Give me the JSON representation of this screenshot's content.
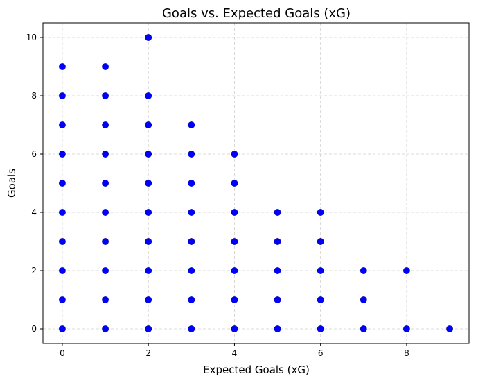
{
  "chart_data": {
    "type": "scatter",
    "title": "Goals vs. Expected Goals (xG)",
    "xlabel": "Expected Goals (xG)",
    "ylabel": "Goals",
    "xlim": [
      -0.45,
      9.45
    ],
    "ylim": [
      -0.5,
      10.5
    ],
    "xticks": [
      0,
      2,
      4,
      6,
      8
    ],
    "yticks": [
      0,
      2,
      4,
      6,
      8,
      10
    ],
    "grid": true,
    "marker_color": "#0000ff",
    "points": [
      [
        0,
        0
      ],
      [
        0,
        1
      ],
      [
        0,
        2
      ],
      [
        0,
        3
      ],
      [
        0,
        4
      ],
      [
        0,
        5
      ],
      [
        0,
        6
      ],
      [
        0,
        7
      ],
      [
        0,
        8
      ],
      [
        0,
        9
      ],
      [
        1,
        0
      ],
      [
        1,
        1
      ],
      [
        1,
        2
      ],
      [
        1,
        3
      ],
      [
        1,
        4
      ],
      [
        1,
        5
      ],
      [
        1,
        6
      ],
      [
        1,
        7
      ],
      [
        1,
        8
      ],
      [
        1,
        9
      ],
      [
        2,
        0
      ],
      [
        2,
        1
      ],
      [
        2,
        2
      ],
      [
        2,
        3
      ],
      [
        2,
        4
      ],
      [
        2,
        5
      ],
      [
        2,
        6
      ],
      [
        2,
        7
      ],
      [
        2,
        8
      ],
      [
        2,
        10
      ],
      [
        3,
        0
      ],
      [
        3,
        1
      ],
      [
        3,
        2
      ],
      [
        3,
        3
      ],
      [
        3,
        4
      ],
      [
        3,
        5
      ],
      [
        3,
        6
      ],
      [
        3,
        7
      ],
      [
        4,
        0
      ],
      [
        4,
        1
      ],
      [
        4,
        2
      ],
      [
        4,
        3
      ],
      [
        4,
        4
      ],
      [
        4,
        5
      ],
      [
        4,
        6
      ],
      [
        5,
        0
      ],
      [
        5,
        1
      ],
      [
        5,
        2
      ],
      [
        5,
        3
      ],
      [
        5,
        4
      ],
      [
        6,
        0
      ],
      [
        6,
        1
      ],
      [
        6,
        2
      ],
      [
        6,
        3
      ],
      [
        6,
        4
      ],
      [
        7,
        0
      ],
      [
        7,
        1
      ],
      [
        7,
        2
      ],
      [
        8,
        0
      ],
      [
        8,
        2
      ],
      [
        9,
        0
      ]
    ]
  }
}
